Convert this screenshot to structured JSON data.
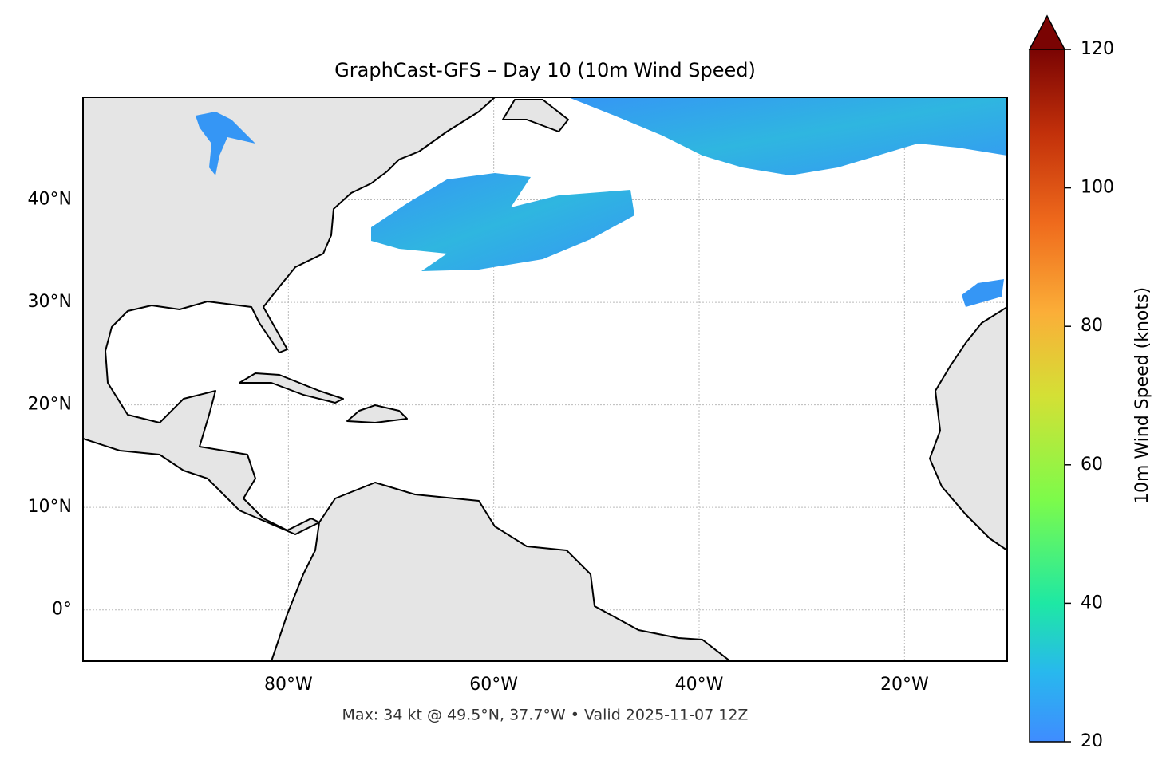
{
  "map": {
    "title": "GraphCast-GFS – Day 10 (10m Wind Speed)",
    "xlim": [
      -100,
      -10
    ],
    "ylim": [
      -5,
      50
    ],
    "xticks": [
      {
        "value": -80,
        "label": "80°W"
      },
      {
        "value": -60,
        "label": "60°W"
      },
      {
        "value": -40,
        "label": "40°W"
      },
      {
        "value": -20,
        "label": "20°W"
      }
    ],
    "yticks": [
      {
        "value": 0,
        "label": "0°"
      },
      {
        "value": 10,
        "label": "10°N"
      },
      {
        "value": 20,
        "label": "20°N"
      },
      {
        "value": 30,
        "label": "30°N"
      },
      {
        "value": 40,
        "label": "40°N"
      }
    ],
    "footer": "Max: 34 kt @ 49.5°N, 37.7°W • Valid 2025-11-07 12Z",
    "colorbar": {
      "label": "10m Wind Speed (knots)",
      "lim": [
        20,
        120
      ],
      "ticks": [
        20,
        40,
        60,
        80,
        100,
        120
      ]
    }
  }
}
